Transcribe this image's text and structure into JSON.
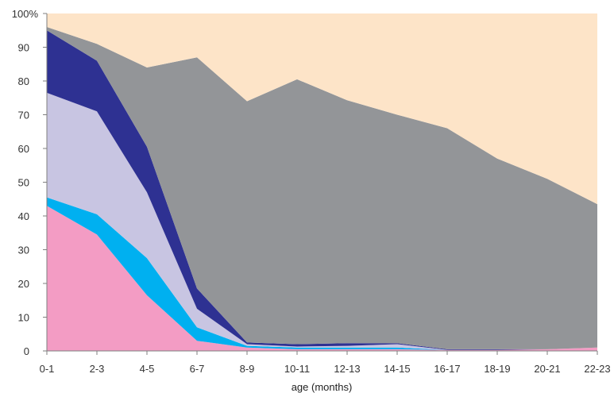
{
  "chart_data": {
    "type": "area",
    "stacked": true,
    "xlabel": "age (months)",
    "ylabel": "",
    "ylim": [
      0,
      100
    ],
    "y_ticks": [
      "0",
      "10",
      "20",
      "30",
      "40",
      "50",
      "60",
      "70",
      "80",
      "90",
      "100%"
    ],
    "categories": [
      "0-1",
      "2-3",
      "4-5",
      "6-7",
      "8-9",
      "10-11",
      "12-13",
      "14-15",
      "16-17",
      "18-19",
      "20-21",
      "22-23"
    ],
    "grid": false,
    "legend": "none",
    "series": [
      {
        "color": "#f39cc4",
        "values": [
          43,
          34.5,
          16.5,
          3,
          1,
          0.5,
          0.5,
          0.5,
          0.3,
          0.3,
          0.5,
          1
        ]
      },
      {
        "color": "#00b0f0",
        "values": [
          2.5,
          6,
          11,
          4,
          0.5,
          0.5,
          0.5,
          0.5,
          0,
          0,
          0,
          0
        ]
      },
      {
        "color": "#c8c5e2",
        "values": [
          31,
          30.5,
          19.5,
          5.5,
          0.5,
          0.3,
          0.5,
          1,
          0,
          0,
          0,
          0
        ]
      },
      {
        "color": "#2e3192",
        "values": [
          18.5,
          15,
          13.5,
          6,
          0.5,
          0.7,
          0.8,
          0.3,
          0.2,
          0.2,
          0,
          0
        ]
      },
      {
        "color": "#939598",
        "values": [
          1,
          5,
          23.5,
          68.5,
          71.5,
          78.5,
          72,
          67.7,
          65.5,
          56.5,
          50.5,
          42.5
        ]
      },
      {
        "color": "#fde4c8",
        "values": [
          4,
          9,
          16,
          13,
          26,
          19.5,
          25.7,
          30,
          34,
          43,
          49,
          56.5
        ]
      }
    ]
  }
}
